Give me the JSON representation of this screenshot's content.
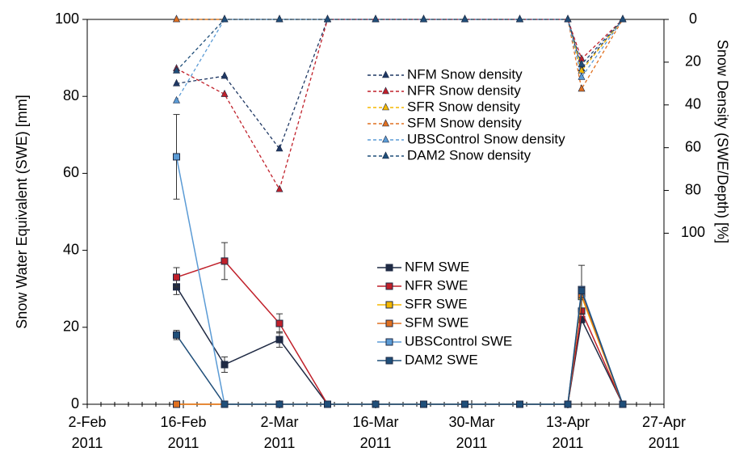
{
  "chart_data": {
    "type": "line",
    "ylabel": "Snow Water Equivalent (SWE) [mm]",
    "y2label": "Snow Density (SWE/Depth) [%]",
    "x": [
      "2011-02-15",
      "2011-02-22",
      "2011-03-02",
      "2011-03-09",
      "2011-03-16",
      "2011-03-23",
      "2011-03-29",
      "2011-04-06",
      "2011-04-13",
      "2011-04-15",
      "2011-04-21"
    ],
    "xlim": [
      "2011-02-02",
      "2011-04-27"
    ],
    "xticks": [
      {
        "value": "2011-02-02",
        "label": "2-Feb\n2011"
      },
      {
        "value": "2011-02-16",
        "label": "16-Feb\n2011"
      },
      {
        "value": "2011-03-02",
        "label": "2-Mar\n2011"
      },
      {
        "value": "2011-03-16",
        "label": "16-Mar\n2011"
      },
      {
        "value": "2011-03-30",
        "label": "30-Mar\n2011"
      },
      {
        "value": "2011-04-13",
        "label": "13-Apr\n2011"
      },
      {
        "value": "2011-04-27",
        "label": "27-Apr\n2011"
      }
    ],
    "ylim": [
      0,
      100
    ],
    "yticks": [
      0,
      20,
      40,
      60,
      80,
      100
    ],
    "y2lim": [
      180,
      0
    ],
    "y2ticks": [
      0,
      20,
      40,
      60,
      80,
      100
    ],
    "series": [
      {
        "name": "NFM Snow density",
        "color": "#1f3864",
        "axis": "y2",
        "linestyle": "dashed",
        "marker": "triangle",
        "values": [
          30,
          26.5,
          60.5,
          0,
          0,
          0,
          0,
          0,
          0,
          23,
          0
        ]
      },
      {
        "name": "NFR Snow density",
        "color": "#c0202a",
        "axis": "y2",
        "linestyle": "dashed",
        "marker": "triangle",
        "values": [
          23,
          35,
          79.5,
          0,
          0,
          0,
          0,
          0,
          0,
          18.5,
          0
        ]
      },
      {
        "name": "SFR Snow density",
        "color": "#f5b800",
        "axis": "y2",
        "linestyle": "dashed",
        "marker": "triangle",
        "values": [
          0,
          0,
          0,
          0,
          0,
          0,
          0,
          0,
          0,
          24,
          0
        ]
      },
      {
        "name": "SFM Snow density",
        "color": "#e07020",
        "axis": "y2",
        "linestyle": "dashed",
        "marker": "triangle",
        "values": [
          0,
          0,
          0,
          0,
          0,
          0,
          0,
          0,
          0,
          32.5,
          0
        ]
      },
      {
        "name": "UBSControl Snow density",
        "color": "#5b9bd5",
        "axis": "y2",
        "linestyle": "dashed",
        "marker": "triangle",
        "values": [
          38,
          0,
          0,
          0,
          0,
          0,
          0,
          0,
          0,
          27,
          0
        ]
      },
      {
        "name": "DAM2 Snow density",
        "color": "#1f4e79",
        "axis": "y2",
        "linestyle": "dashed",
        "marker": "triangle",
        "values": [
          24,
          0,
          0,
          0,
          0,
          0,
          0,
          0,
          0,
          21,
          0
        ]
      },
      {
        "name": "NFM SWE",
        "color": "#1f2a44",
        "marker": "square",
        "values": [
          30.5,
          10.3,
          16.8,
          0,
          0,
          0,
          0,
          0,
          0,
          22,
          0
        ],
        "errors": [
          2,
          2,
          2,
          null,
          null,
          null,
          null,
          null,
          null,
          null,
          null
        ]
      },
      {
        "name": "NFR SWE",
        "color": "#c0202a",
        "marker": "square",
        "values": [
          33,
          37.2,
          21,
          0,
          0,
          0,
          0,
          0,
          0,
          24.2,
          0
        ],
        "errors": [
          2.5,
          4.8,
          2.5,
          null,
          null,
          null,
          null,
          null,
          null,
          null,
          null
        ]
      },
      {
        "name": "SFR SWE",
        "color": "#f5b800",
        "marker": "square",
        "values": [
          0,
          0,
          0,
          0,
          0,
          0,
          0,
          0,
          0,
          28,
          0
        ]
      },
      {
        "name": "SFM SWE",
        "color": "#e07020",
        "marker": "square",
        "values": [
          0,
          0,
          0,
          0,
          0,
          0,
          0,
          0,
          0,
          28.5,
          0
        ]
      },
      {
        "name": "UBSControl SWE",
        "color": "#5b9bd5",
        "marker": "square",
        "values": [
          64.3,
          0,
          0,
          0,
          0,
          0,
          0,
          0,
          0,
          29.8,
          0
        ],
        "errors": [
          11,
          null,
          null,
          null,
          null,
          null,
          null,
          null,
          null,
          6.3,
          null
        ]
      },
      {
        "name": "DAM2 SWE",
        "color": "#1f4e79",
        "marker": "square",
        "values": [
          18,
          0,
          0,
          0,
          0,
          0,
          0,
          0,
          0,
          29.5,
          0
        ],
        "errors": [
          1.2,
          null,
          null,
          null,
          null,
          null,
          null,
          null,
          null,
          null,
          null
        ]
      }
    ]
  }
}
